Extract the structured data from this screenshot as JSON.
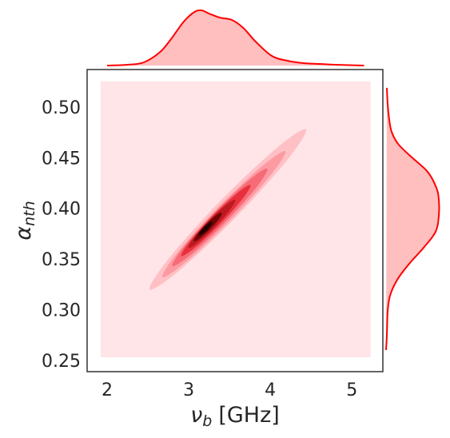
{
  "chart_data": {
    "type": "kde2d",
    "xlabel": {
      "symbol": "ν",
      "subscript": "b",
      "unit": "[GHz]"
    },
    "ylabel": {
      "symbol": "α",
      "subscript": "nth"
    },
    "xlim": [
      1.755,
      5.38
    ],
    "ylim": [
      0.2405,
      0.5386
    ],
    "xticks": [
      2,
      3,
      4,
      5
    ],
    "yticks": [
      0.25,
      {
        "value": 0.3,
        "label": "0.30"
      },
      0.35,
      {
        "value": 0.4,
        "label": "0.40"
      },
      0.45,
      {
        "value": 0.5,
        "label": "0.50"
      }
    ],
    "contours": [
      {
        "color": "#ffe5e7",
        "x": [
          1.92,
          5.23,
          5.23,
          1.92
        ],
        "y": [
          0.2547,
          0.2547,
          0.527,
          0.527
        ]
      },
      {
        "color": "#ffc0c5",
        "x": [
          4.438,
          4.22,
          3.578,
          2.878,
          2.523,
          2.741,
          3.382,
          4.082
        ],
        "y": [
          0.4797,
          0.4506,
          0.3929,
          0.3399,
          0.3216,
          0.3506,
          0.4084,
          0.4614
        ]
      },
      {
        "color": "#fc9aa2",
        "x": [
          4.184,
          4.012,
          3.508,
          2.958,
          2.678,
          2.85,
          3.354,
          3.904
        ],
        "y": [
          0.458,
          0.4352,
          0.3898,
          0.3482,
          0.3338,
          0.3566,
          0.402,
          0.4436
        ]
      },
      {
        "color": "#f66b76",
        "x": [
          3.964,
          3.833,
          3.445,
          3.019,
          2.8,
          2.931,
          3.319,
          3.745
        ],
        "y": [
          0.4407,
          0.4228,
          0.3878,
          0.3556,
          0.3447,
          0.3626,
          0.3977,
          0.4298
        ]
      },
      {
        "color": "#e8303c",
        "x": [
          3.757,
          3.664,
          3.382,
          3.07,
          2.909,
          3.002,
          3.284,
          3.596
        ],
        "y": [
          0.4246,
          0.4114,
          0.3858,
          0.3624,
          0.3546,
          0.3678,
          0.3935,
          0.4168
        ]
      },
      {
        "color": "#bb1a20",
        "x": [
          3.571,
          3.512,
          3.323,
          3.11,
          2.997,
          3.056,
          3.245,
          3.458
        ],
        "y": [
          0.4101,
          0.4009,
          0.3834,
          0.3677,
          0.3627,
          0.3719,
          0.3894,
          0.4051
        ]
      },
      {
        "color": "#700506",
        "x": [
          3.406,
          3.375,
          3.263,
          3.135,
          3.064,
          3.095,
          3.207,
          3.335
        ],
        "y": [
          0.3974,
          0.3917,
          0.3811,
          0.3719,
          0.3692,
          0.375,
          0.3855,
          0.3948
        ]
      },
      {
        "color": "#200000",
        "x": [
          3.288,
          3.276,
          3.224,
          3.161,
          3.124,
          3.136,
          3.188,
          3.251
        ],
        "y": [
          0.3885,
          0.3854,
          0.3803,
          0.376,
          0.3749,
          0.3779,
          0.3831,
          0.3874
        ]
      }
    ],
    "marginal_x": {
      "color": "#ff0000",
      "fill": "#ffbfbf",
      "ylim": [
        0,
        0.82
      ],
      "x": [
        2.0,
        2.25,
        2.45,
        2.65,
        2.79,
        2.94,
        3.07,
        3.16,
        3.25,
        3.38,
        3.53,
        3.67,
        3.82,
        4.02,
        4.21,
        4.41,
        4.61,
        4.8,
        5.15
      ],
      "values": [
        0,
        0.01,
        0.04,
        0.17,
        0.34,
        0.55,
        0.67,
        0.69,
        0.65,
        0.6,
        0.57,
        0.47,
        0.3,
        0.12,
        0.06,
        0.03,
        0.02,
        0.01,
        0
      ]
    },
    "marginal_y": {
      "color": "#ff0000",
      "fill": "#ffbfbf",
      "xlim": [
        0,
        8.1
      ],
      "y": [
        0.2618,
        0.276,
        0.2997,
        0.3155,
        0.3312,
        0.347,
        0.3628,
        0.3786,
        0.3943,
        0.4101,
        0.4219,
        0.4377,
        0.4535,
        0.4653,
        0.4771,
        0.489,
        0.5047,
        0.5205
      ],
      "values": [
        0.1,
        0.2,
        0.3,
        0.6,
        1.5,
        3.0,
        4.8,
        6.3,
        6.7,
        6.7,
        6.4,
        5.3,
        3.1,
        1.6,
        0.8,
        0.5,
        0.3,
        0.2
      ]
    }
  }
}
